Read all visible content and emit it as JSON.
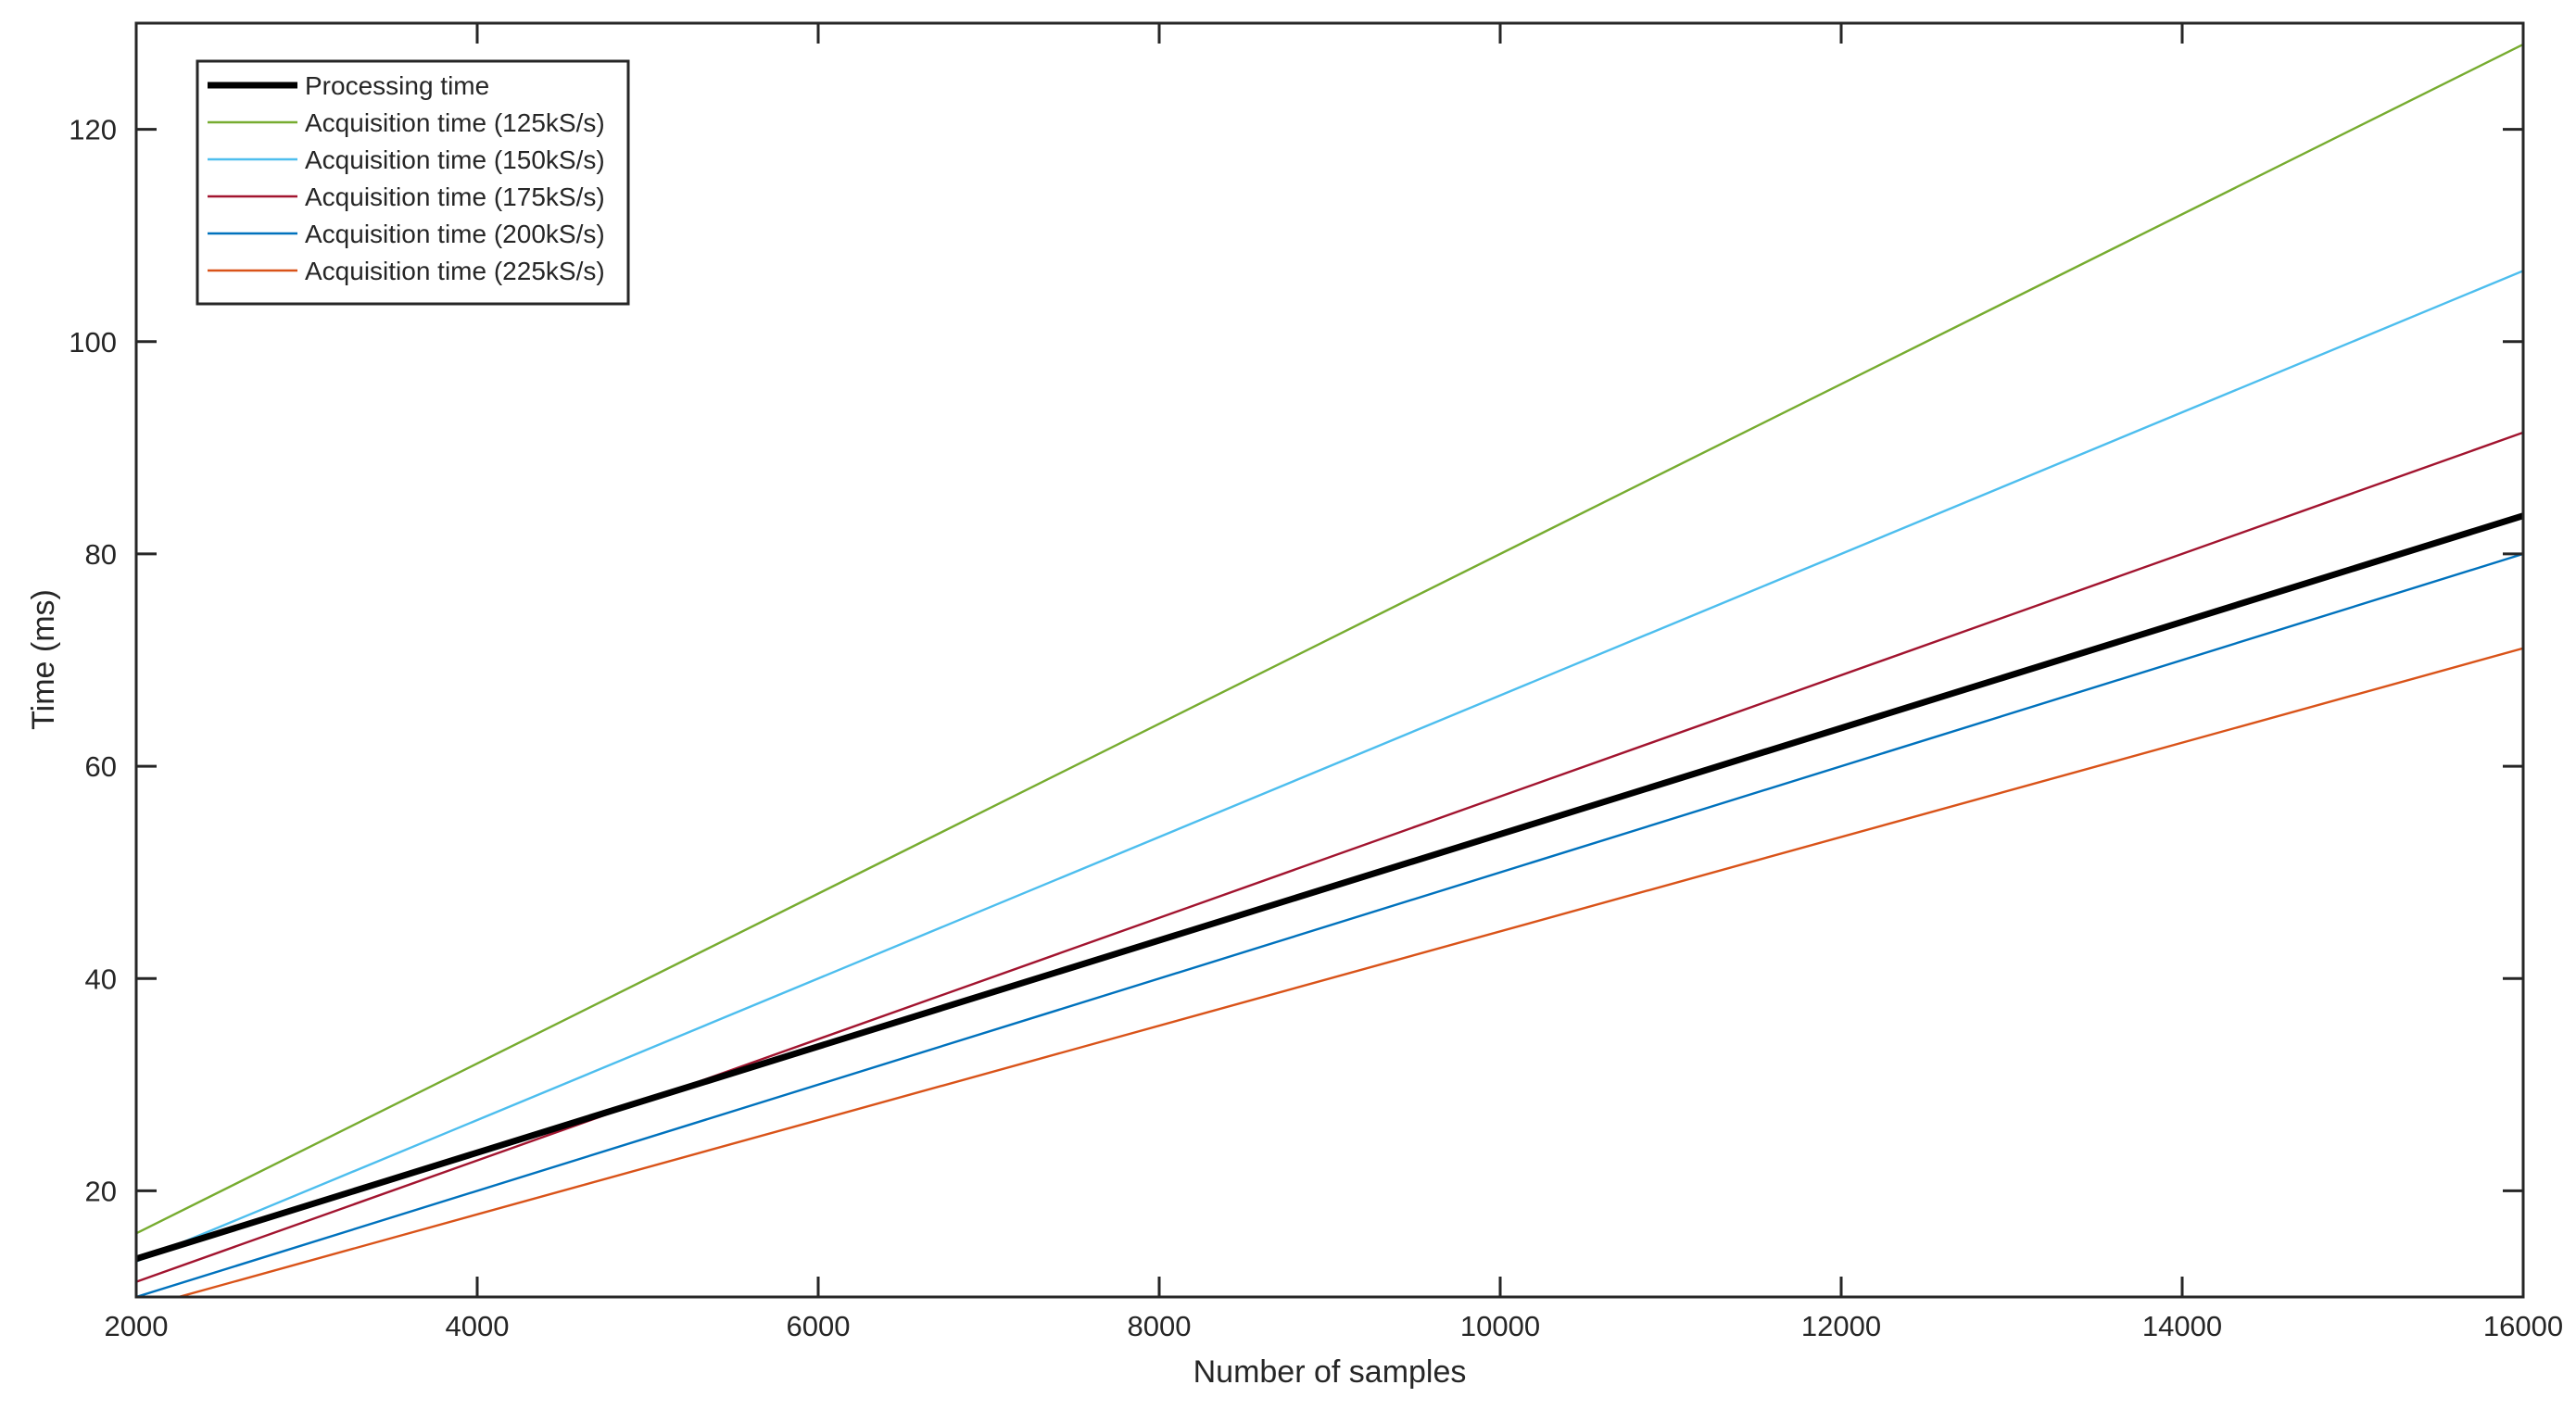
{
  "chart_data": {
    "type": "line",
    "title": "",
    "xlabel": "Number of samples",
    "ylabel": "Time (ms)",
    "xlim": [
      2000,
      16000
    ],
    "ylim": [
      10,
      130
    ],
    "xticks": [
      2000,
      4000,
      6000,
      8000,
      10000,
      12000,
      14000,
      16000
    ],
    "yticks": [
      20,
      40,
      60,
      80,
      100,
      120
    ],
    "grid": false,
    "legend_position": "top-left",
    "x": [
      2000,
      16000
    ],
    "series": [
      {
        "name": "Processing time",
        "color": "#000000",
        "emphasis": "bold",
        "x": [
          2000,
          16000
        ],
        "values": [
          13.6,
          83.6
        ]
      },
      {
        "name": "Acquisition time (125kS/s)",
        "color": "#77AC30",
        "x": [
          2000,
          16000
        ],
        "values": [
          16.0,
          128.0
        ]
      },
      {
        "name": "Acquisition time (150kS/s)",
        "color": "#4DBEEE",
        "x": [
          2000,
          16000
        ],
        "values": [
          13.33,
          106.67
        ]
      },
      {
        "name": "Acquisition time (175kS/s)",
        "color": "#A2142F",
        "x": [
          2000,
          16000
        ],
        "values": [
          11.43,
          91.43
        ]
      },
      {
        "name": "Acquisition time (200kS/s)",
        "color": "#0072BD",
        "x": [
          2000,
          16000
        ],
        "values": [
          10.0,
          80.0
        ]
      },
      {
        "name": "Acquisition time (225kS/s)",
        "color": "#D95319",
        "x": [
          2000,
          16000
        ],
        "values": [
          8.89,
          71.11
        ]
      }
    ]
  }
}
